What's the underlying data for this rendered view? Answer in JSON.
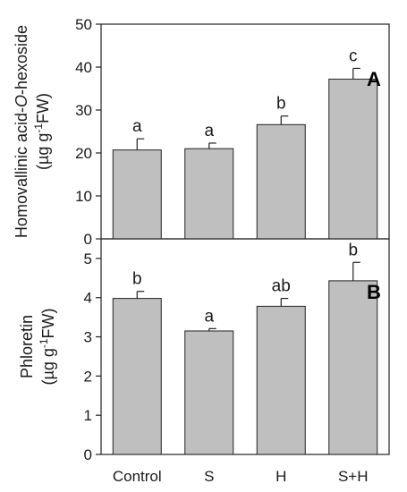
{
  "chart_data": [
    {
      "panel": "A",
      "type": "bar",
      "categories": [
        "Control",
        "S",
        "H",
        "S+H"
      ],
      "values": [
        20.7,
        21.0,
        26.6,
        37.2
      ],
      "errors": [
        2.6,
        1.3,
        2.0,
        2.5
      ],
      "significance": [
        "a",
        "a",
        "b",
        "c"
      ],
      "ylabel": {
        "line1_pre": "Homovallinic acid-",
        "line1_italic": "O",
        "line1_post": "-hexoside",
        "line2_pre": "(µg g",
        "line2_sup": "-1",
        "line2_post": "FW)"
      },
      "ylim": [
        0,
        50
      ],
      "yticks": [
        0,
        10,
        20,
        30,
        40,
        50
      ],
      "ytick_labels": [
        "0",
        "10",
        "20",
        "30",
        "40",
        "50"
      ],
      "grid": false
    },
    {
      "panel": "B",
      "type": "bar",
      "categories": [
        "Control",
        "S",
        "H",
        "S+H"
      ],
      "values": [
        3.98,
        3.15,
        3.78,
        4.43
      ],
      "errors": [
        0.18,
        0.06,
        0.2,
        0.47
      ],
      "significance": [
        "b",
        "a",
        "ab",
        "b"
      ],
      "ylabel": {
        "line1_pre": "Phloretin",
        "line1_italic": "",
        "line1_post": "",
        "line2_pre": "(µg g",
        "line2_sup": "-1",
        "line2_post": "FW)"
      },
      "ylim": [
        0,
        5.5
      ],
      "yticks": [
        0,
        1,
        2,
        3,
        4,
        5
      ],
      "ytick_labels": [
        "0",
        "1",
        "2",
        "3",
        "4",
        "5"
      ],
      "grid": false
    }
  ]
}
